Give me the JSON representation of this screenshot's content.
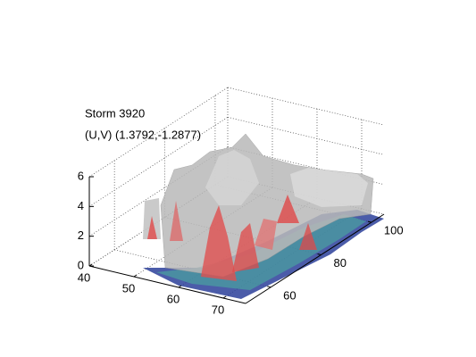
{
  "chart_data": {
    "type": "isosurface",
    "title": "Storm 3920",
    "subtitle": "(U,V) (1.3792,-1.2877)",
    "xlim": [
      40,
      75
    ],
    "xticks": [
      40,
      50,
      60,
      70
    ],
    "ylim": [
      50,
      105
    ],
    "yticks": [
      60,
      80,
      100
    ],
    "zlim": [
      0,
      6
    ],
    "zticks": [
      0,
      2,
      4,
      6
    ],
    "grid": true
  }
}
